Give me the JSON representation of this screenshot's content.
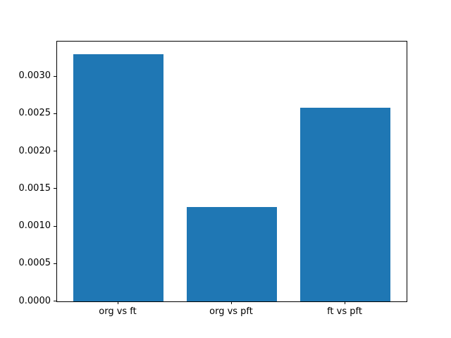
{
  "chart_data": {
    "type": "bar",
    "categories": [
      "org vs ft",
      "org vs pft",
      "ft vs pft"
    ],
    "values": [
      0.0033,
      0.00126,
      0.00258
    ],
    "title": "",
    "xlabel": "",
    "ylabel": "",
    "ylim": [
      0,
      0.003465
    ],
    "xlim": [
      -0.54,
      2.54
    ],
    "bar_width": 0.8,
    "bar_color": "#1f77b4",
    "spine_color": "#000000",
    "background_color": "#ffffff",
    "grid": false,
    "legend": null,
    "yticks": [
      0.0,
      0.0005,
      0.001,
      0.0015,
      0.002,
      0.0025,
      0.003
    ],
    "ytick_labels": [
      "0.0000",
      "0.0005",
      "0.0010",
      "0.0015",
      "0.0020",
      "0.0025",
      "0.0030"
    ]
  }
}
